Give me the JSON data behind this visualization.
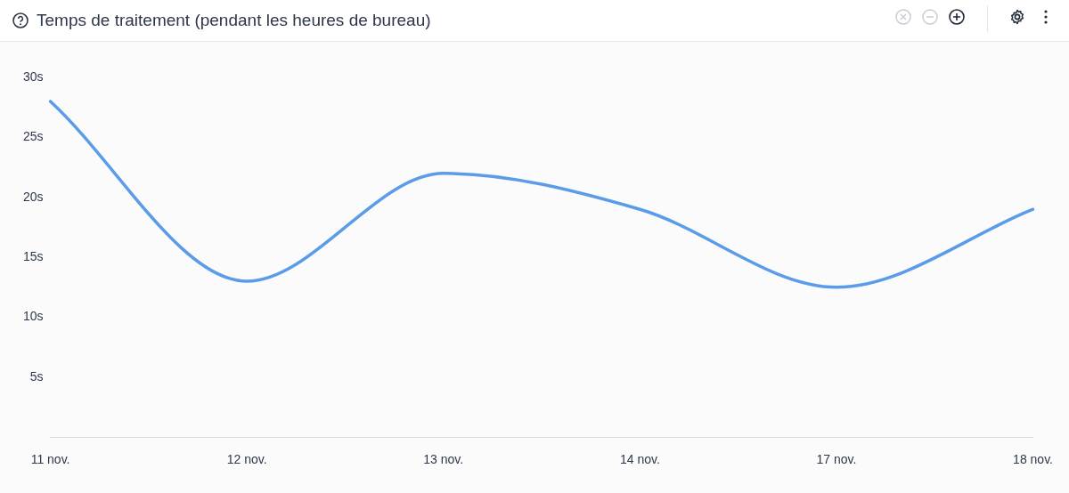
{
  "chart_data": {
    "type": "line",
    "title": "Temps de traitement (pendant les heures de bureau)",
    "categories": [
      "11 nov.",
      "12 nov.",
      "13 nov.",
      "14 nov.",
      "17 nov.",
      "18 nov."
    ],
    "series": [
      {
        "color": "#5b9ce8",
        "values": [
          28,
          13,
          22,
          19,
          12.5,
          19
        ]
      }
    ],
    "ylim": [
      0,
      30
    ],
    "yticks": [
      {
        "value": 5,
        "label": "5s"
      },
      {
        "value": 10,
        "label": "10s"
      },
      {
        "value": 15,
        "label": "15s"
      },
      {
        "value": 20,
        "label": "20s"
      },
      {
        "value": 25,
        "label": "25s"
      },
      {
        "value": 30,
        "label": "30s"
      }
    ],
    "grid": false,
    "legend": false,
    "marker": "none",
    "line_style": "solid"
  }
}
